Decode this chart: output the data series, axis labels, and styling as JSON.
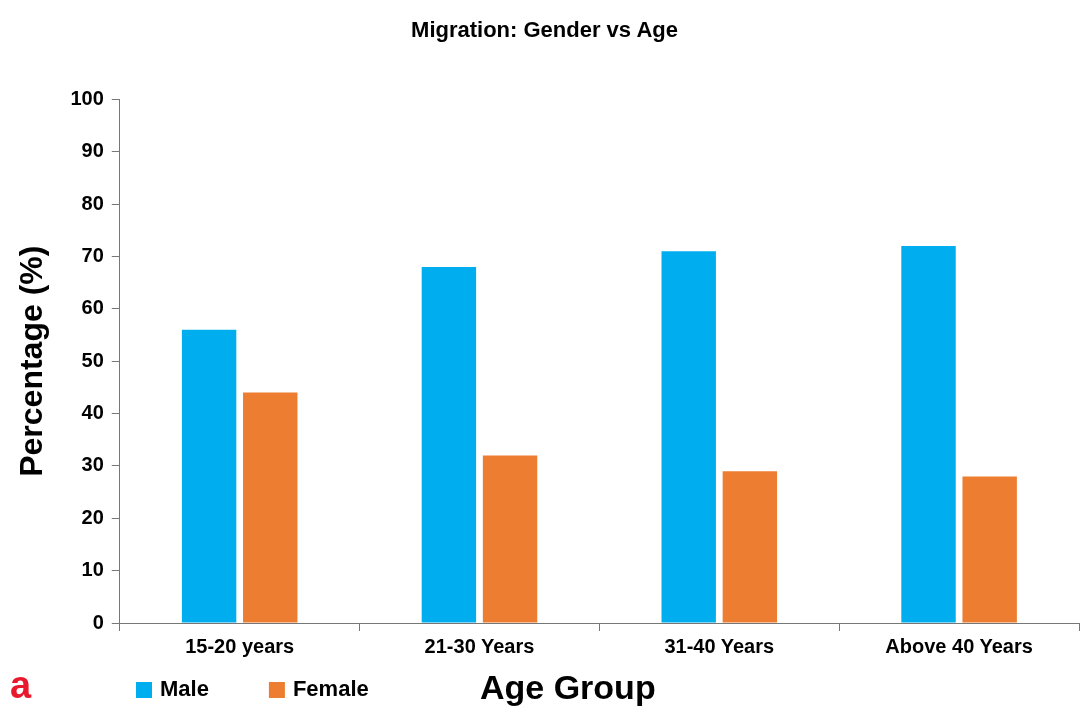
{
  "chart_data": {
    "type": "bar",
    "title": "Migration: Gender vs Age",
    "xlabel": "Age Group",
    "ylabel": "Percentage (%)",
    "categories": [
      "15-20 years",
      "21-30 Years",
      "31-40 Years",
      "Above 40 Years"
    ],
    "series": [
      {
        "name": "Male",
        "color": "#00aeef",
        "values": [
          56,
          68,
          71,
          72
        ]
      },
      {
        "name": "Female",
        "color": "#ed7d31",
        "values": [
          44,
          32,
          29,
          28
        ]
      }
    ],
    "ylim": [
      0,
      100
    ],
    "yticks": [
      0,
      10,
      20,
      30,
      40,
      50,
      60,
      70,
      80,
      90,
      100
    ],
    "grid": false,
    "legend": "bottom left",
    "annotations": [
      "a"
    ]
  }
}
